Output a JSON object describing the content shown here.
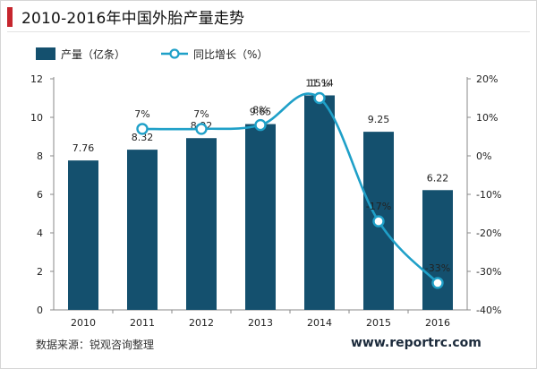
{
  "page": {
    "title": "2010-2016年中国外胎产量走势",
    "source": "数据来源：锐观咨询整理",
    "watermark": "www.reportrc.com"
  },
  "colors": {
    "bar": "#14506e",
    "line": "#1fa0c8",
    "accent": "#c6262e"
  },
  "chart_data": {
    "type": "bar",
    "title": "",
    "categories": [
      "2010",
      "2011",
      "2012",
      "2013",
      "2014",
      "2015",
      "2016"
    ],
    "series": [
      {
        "name": "产量（亿条）",
        "type": "bar",
        "axis": "left",
        "values": [
          7.76,
          8.32,
          8.92,
          9.65,
          11.14,
          9.25,
          6.22
        ],
        "labels": [
          "7.76",
          "8.32",
          "8.92",
          "9.65",
          "11.14",
          "9.25",
          "6.22"
        ]
      },
      {
        "name": "同比增长（%）",
        "type": "line",
        "axis": "right",
        "values": [
          null,
          7,
          7,
          8,
          15,
          -17,
          -33
        ],
        "labels": [
          "",
          "7%",
          "7%",
          "8%",
          "15%",
          "-17%",
          "-33%"
        ]
      }
    ],
    "y_left": {
      "min": 0,
      "max": 12,
      "ticks": [
        "0",
        "2",
        "4",
        "6",
        "8",
        "10",
        "12"
      ]
    },
    "y_right": {
      "min": -40,
      "max": 20,
      "ticks": [
        "-40%",
        "-30%",
        "-20%",
        "-10%",
        "0%",
        "10%",
        "20%"
      ]
    },
    "legend": {
      "position": "top-left"
    },
    "grid": false
  }
}
